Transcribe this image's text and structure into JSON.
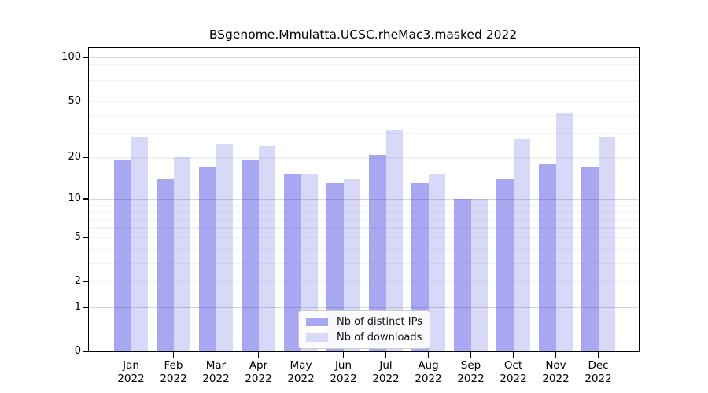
{
  "chart_data": {
    "type": "bar",
    "title": "BSgenome.Mmulatta.UCSC.rheMac3.masked 2022",
    "categories": [
      "Jan",
      "Feb",
      "Mar",
      "Apr",
      "May",
      "Jun",
      "Jul",
      "Aug",
      "Sep",
      "Oct",
      "Nov",
      "Dec"
    ],
    "year_label": "2022",
    "series": [
      {
        "name": "Nb of distinct IPs",
        "color": "#a8a8f2",
        "values": [
          19,
          14,
          17,
          19,
          15,
          13,
          21,
          13,
          10,
          14,
          18,
          17
        ]
      },
      {
        "name": "Nb of downloads",
        "color": "#d8d8f8",
        "values": [
          28,
          20,
          25,
          24,
          15,
          14,
          31,
          15,
          10,
          27,
          41,
          28
        ]
      }
    ],
    "xlabel": "",
    "ylabel": "",
    "y_ticks": [
      0,
      1,
      2,
      5,
      10,
      20,
      50,
      100
    ],
    "scale": "log1p",
    "ylim": [
      0,
      115
    ],
    "grid": "on",
    "gridlines": {
      "major": [
        1,
        10,
        100
      ],
      "minor": [
        2,
        3,
        4,
        5,
        6,
        7,
        8,
        9,
        20,
        30,
        40,
        50,
        60,
        70,
        80,
        90
      ]
    },
    "legend_position": "lower-center"
  }
}
